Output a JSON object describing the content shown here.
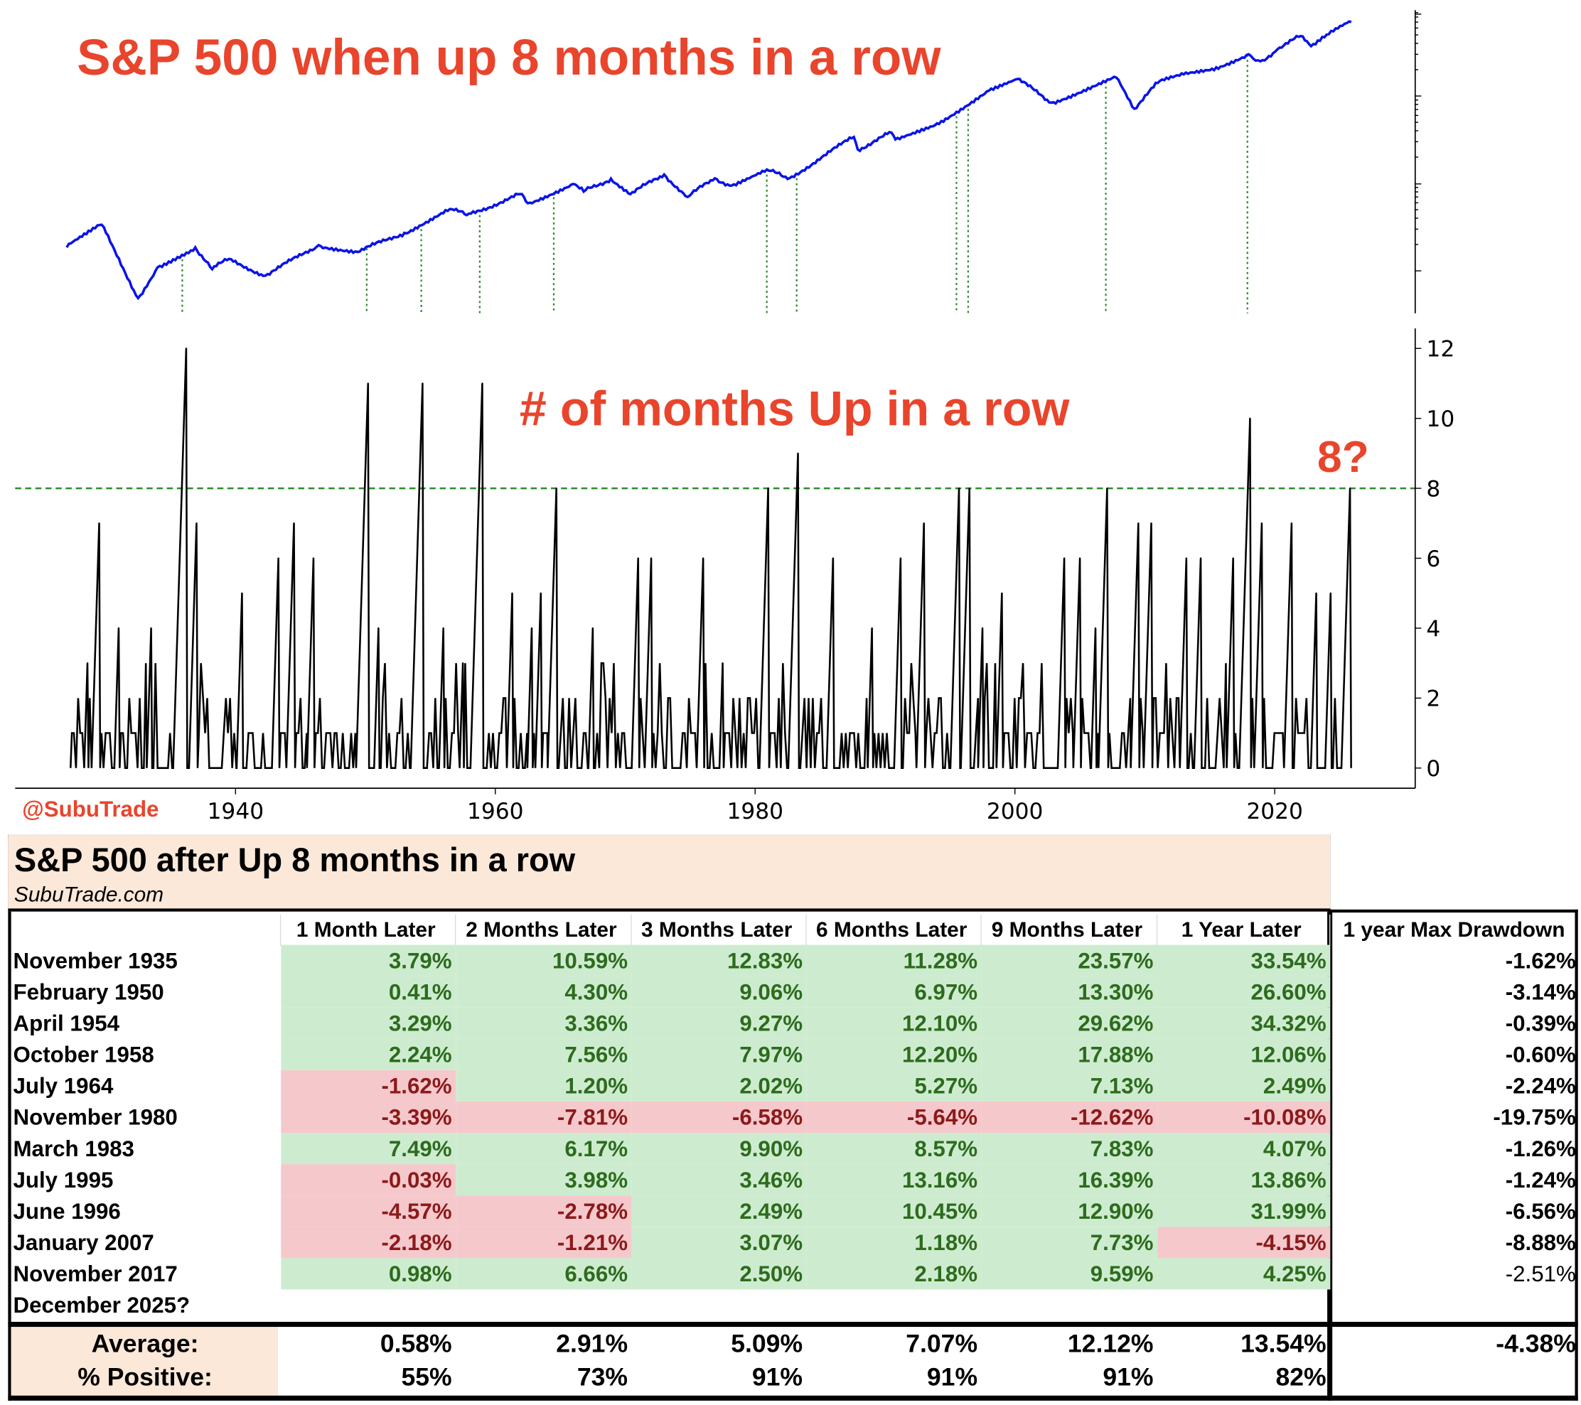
{
  "titles": {
    "top": "S&P 500 when up 8 months in a row",
    "bottom": "# of months Up in a row",
    "current": "8?",
    "handle": "@SubuTrade"
  },
  "chart_data": [
    {
      "type": "line",
      "title": "S&P 500 when up 8 months in a row",
      "yscale": "log",
      "xlim": [
        1923,
        2031
      ],
      "x": [
        1927,
        1929.7,
        1932.5,
        1934,
        1936.9,
        1938.2,
        1939.5,
        1942.3,
        1946.4,
        1949.4,
        1953,
        1956.5,
        1957.8,
        1961.9,
        1962.5,
        1966,
        1966.8,
        1968.9,
        1970.4,
        1973,
        1974.8,
        1976.9,
        1978.2,
        1980.9,
        1982.5,
        1987.6,
        1987.9,
        1990.5,
        1990.8,
        1994,
        1998,
        2000.2,
        2002.8,
        2007.8,
        2009.2,
        2011,
        2013,
        2015.5,
        2018,
        2018.9,
        2020.2,
        2022,
        2022.8,
        2024,
        2025.9
      ],
      "values": [
        17,
        31,
        4.4,
        10,
        17,
        9.5,
        12.5,
        8,
        18,
        15,
        25,
        47,
        40,
        70,
        55,
        92,
        75,
        106,
        70,
        118,
        65,
        107,
        88,
        135,
        105,
        320,
        230,
        360,
        300,
        460,
        1100,
        1500,
        800,
        1560,
        680,
        1350,
        1700,
        2050,
        2900,
        2400,
        3300,
        4700,
        3600,
        4900,
        6850
      ],
      "signal_years": [
        1935.9,
        1950.1,
        1954.3,
        1958.8,
        1964.5,
        1980.9,
        1983.2,
        1995.5,
        1996.4,
        2007.0,
        2017.9
      ]
    },
    {
      "type": "line",
      "title": "# of months Up in a row",
      "ylim": [
        0,
        12
      ],
      "yticks": [
        0,
        2,
        4,
        6,
        8,
        10,
        12
      ],
      "xticks": [
        1940,
        1960,
        1980,
        2000,
        2020
      ],
      "threshold": 8,
      "peaks_x": [
        1928.6,
        1929.5,
        1931,
        1933.5,
        1936.2,
        1937,
        1940.5,
        1943.3,
        1944.5,
        1946,
        1950.2,
        1951,
        1954.4,
        1956,
        1957.5,
        1959,
        1961.3,
        1962.8,
        1963.5,
        1964.7,
        1967.5,
        1971,
        1972,
        1976,
        1977.5,
        1981,
        1983.3,
        1986,
        1989,
        1991.2,
        1993,
        1995.7,
        1996.5,
        1997.5,
        1999,
        2003.8,
        2005,
        2006.2,
        2007.1,
        2009.5,
        2010.5,
        2013.2,
        2014.3,
        2016.8,
        2018.1,
        2019,
        2021.3,
        2023.2,
        2024.3,
        2025.8
      ],
      "peaks_y": [
        3,
        7,
        4,
        4,
        12,
        7,
        5,
        6,
        7,
        6,
        11,
        4,
        11,
        4,
        3,
        11,
        5,
        4,
        5,
        8,
        4,
        6,
        6,
        6,
        3,
        8,
        9,
        6,
        4,
        6,
        7,
        8,
        8,
        4,
        5,
        6,
        6,
        4,
        8,
        7,
        7,
        6,
        6,
        6,
        10,
        7,
        7,
        5,
        5,
        8
      ]
    }
  ],
  "table": {
    "title": "S&P 500 after Up 8 months in a row",
    "site": "SubuTrade.com",
    "headers": [
      "",
      "1 Month Later",
      "2 Months Later",
      "3 Months Later",
      "6 Months Later",
      "9 Months Later",
      "1 Year Later",
      "1 year Max Drawdown"
    ],
    "rows": [
      [
        "November 1935",
        "3.79%",
        "10.59%",
        "12.83%",
        "11.28%",
        "23.57%",
        "33.54%",
        "-1.62%"
      ],
      [
        "February 1950",
        "0.41%",
        "4.30%",
        "9.06%",
        "6.97%",
        "13.30%",
        "26.60%",
        "-3.14%"
      ],
      [
        "April 1954",
        "3.29%",
        "3.36%",
        "9.27%",
        "12.10%",
        "29.62%",
        "34.32%",
        "-0.39%"
      ],
      [
        "October 1958",
        "2.24%",
        "7.56%",
        "7.97%",
        "12.20%",
        "17.88%",
        "12.06%",
        "-0.60%"
      ],
      [
        "July 1964",
        "-1.62%",
        "1.20%",
        "2.02%",
        "5.27%",
        "7.13%",
        "2.49%",
        "-2.24%"
      ],
      [
        "November 1980",
        "-3.39%",
        "-7.81%",
        "-6.58%",
        "-5.64%",
        "-12.62%",
        "-10.08%",
        "-19.75%"
      ],
      [
        "March 1983",
        "7.49%",
        "6.17%",
        "9.90%",
        "8.57%",
        "7.83%",
        "4.07%",
        "-1.26%"
      ],
      [
        "July 1995",
        "-0.03%",
        "3.98%",
        "3.46%",
        "13.16%",
        "16.39%",
        "13.86%",
        "-1.24%"
      ],
      [
        "June 1996",
        "-4.57%",
        "-2.78%",
        "2.49%",
        "10.45%",
        "12.90%",
        "31.99%",
        "-6.56%"
      ],
      [
        "January 2007",
        "-2.18%",
        "-1.21%",
        "3.07%",
        "1.18%",
        "7.73%",
        "-4.15%",
        "-8.88%"
      ],
      [
        "November 2017",
        "0.98%",
        "6.66%",
        "2.50%",
        "2.18%",
        "9.59%",
        "4.25%",
        "-2.51%"
      ],
      [
        "December 2025?",
        "",
        "",
        "",
        "",
        "",
        "",
        ""
      ]
    ],
    "summary": [
      [
        "Average:",
        "0.58%",
        "2.91%",
        "5.09%",
        "7.07%",
        "12.12%",
        "13.54%",
        "-4.38%"
      ],
      [
        "% Positive:",
        "55%",
        "73%",
        "91%",
        "91%",
        "91%",
        "82%",
        ""
      ]
    ]
  },
  "colors": {
    "price": "#0a14e6",
    "title": "#e8452c",
    "signal": "#2e8b2e",
    "pos_bg": "#cdeccf",
    "neg_bg": "#f5c8cc",
    "pos_text": "#2e6b1e",
    "neg_text": "#8b1a1a",
    "header_bg": "#fbe8d8"
  }
}
